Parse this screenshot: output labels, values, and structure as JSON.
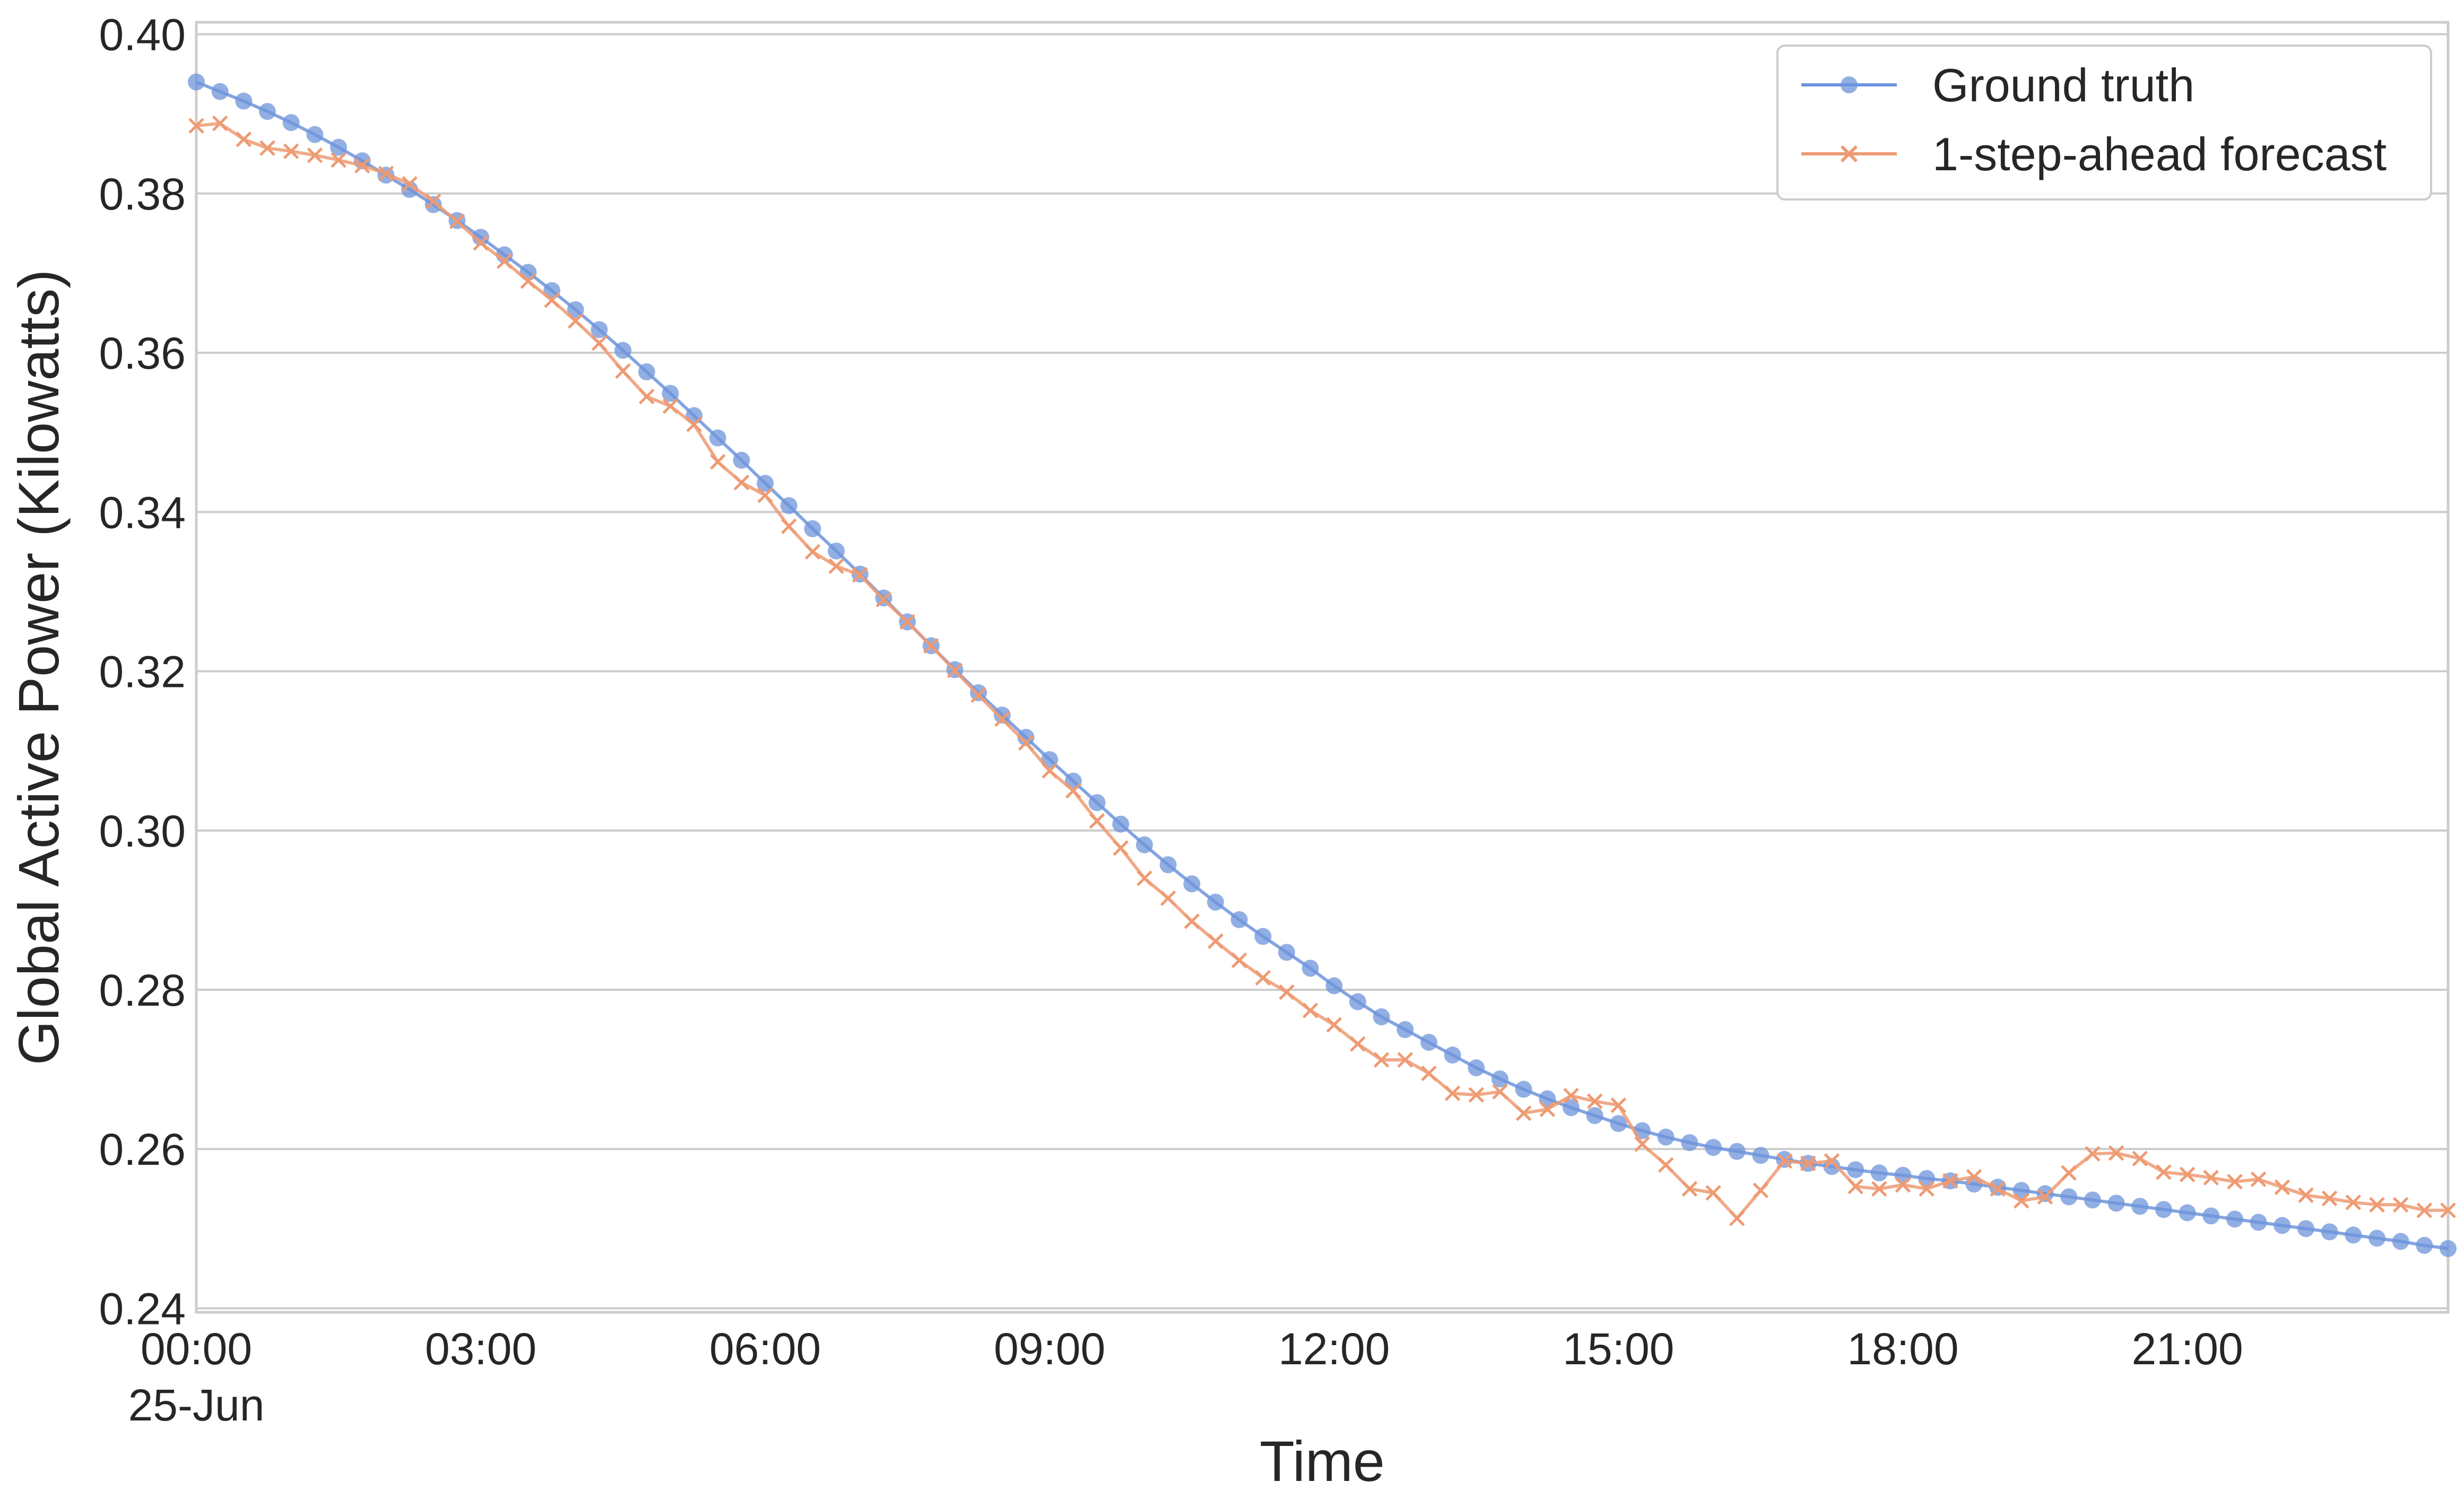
{
  "chart_data": {
    "type": "line",
    "title": "",
    "xlabel": "Time",
    "ylabel": "Global Active Power (Kilowatts)",
    "ylim": [
      0.2395,
      0.4015
    ],
    "yticks": [
      "0.24",
      "0.26",
      "0.28",
      "0.30",
      "0.32",
      "0.34",
      "0.36",
      "0.38",
      "0.40"
    ],
    "xlim": [
      "2010-06-25 00:00",
      "2010-06-25 23:45"
    ],
    "xticks": [
      {
        "label": "00:00",
        "sublabel": "25-Jun"
      },
      {
        "label": "03:00",
        "sublabel": ""
      },
      {
        "label": "06:00",
        "sublabel": ""
      },
      {
        "label": "09:00",
        "sublabel": ""
      },
      {
        "label": "12:00",
        "sublabel": ""
      },
      {
        "label": "15:00",
        "sublabel": ""
      },
      {
        "label": "18:00",
        "sublabel": ""
      },
      {
        "label": "21:00",
        "sublabel": ""
      }
    ],
    "grid": "horizontal",
    "legend_position": "top-right",
    "series": [
      {
        "name": "Ground truth",
        "color": "#6d94db",
        "marker": "circle",
        "values": [
          0.394,
          0.3928,
          0.3916,
          0.3903,
          0.3889,
          0.3874,
          0.3858,
          0.3841,
          0.3823,
          0.3805,
          0.3786,
          0.3766,
          0.3745,
          0.3723,
          0.3701,
          0.3678,
          0.3654,
          0.3629,
          0.3603,
          0.3576,
          0.3549,
          0.3521,
          0.3493,
          0.3465,
          0.3436,
          0.3408,
          0.3379,
          0.3351,
          0.3322,
          0.3292,
          0.3262,
          0.3232,
          0.3202,
          0.3173,
          0.3145,
          0.3117,
          0.3089,
          0.3062,
          0.3035,
          0.3008,
          0.2982,
          0.2957,
          0.2933,
          0.291,
          0.2888,
          0.2867,
          0.2847,
          0.2827,
          0.2805,
          0.2785,
          0.2766,
          0.275,
          0.2734,
          0.2718,
          0.2702,
          0.2688,
          0.2675,
          0.2663,
          0.2652,
          0.2642,
          0.2632,
          0.2623,
          0.2615,
          0.2608,
          0.2602,
          0.2597,
          0.2592,
          0.2587,
          0.2582,
          0.2578,
          0.2574,
          0.257,
          0.2567,
          0.2563,
          0.256,
          0.2556,
          0.2552,
          0.2548,
          0.2544,
          0.254,
          0.2536,
          0.2532,
          0.2528,
          0.2524,
          0.252,
          0.2516,
          0.2512,
          0.2508,
          0.2504,
          0.25,
          0.2496,
          0.2492,
          0.2488,
          0.2484,
          0.2479,
          0.2475
        ]
      },
      {
        "name": "1-step-ahead forecast",
        "color": "#ee9a72",
        "marker": "x",
        "values": [
          0.3885,
          0.3888,
          0.3868,
          0.3857,
          0.3853,
          0.3848,
          0.3842,
          0.3835,
          0.3825,
          0.3812,
          0.379,
          0.3765,
          0.3738,
          0.3715,
          0.369,
          0.3666,
          0.364,
          0.3612,
          0.3577,
          0.3545,
          0.3533,
          0.351,
          0.3463,
          0.3437,
          0.3421,
          0.3382,
          0.335,
          0.3332,
          0.3321,
          0.329,
          0.3262,
          0.3232,
          0.3201,
          0.317,
          0.314,
          0.311,
          0.3075,
          0.305,
          0.3012,
          0.2978,
          0.294,
          0.2915,
          0.2886,
          0.2861,
          0.2837,
          0.2815,
          0.2797,
          0.2774,
          0.2756,
          0.2732,
          0.2712,
          0.2712,
          0.2695,
          0.267,
          0.2668,
          0.2672,
          0.2645,
          0.265,
          0.2667,
          0.266,
          0.2655,
          0.2606,
          0.258,
          0.255,
          0.2545,
          0.2513,
          0.2548,
          0.2585,
          0.2582,
          0.2585,
          0.2553,
          0.255,
          0.2555,
          0.255,
          0.256,
          0.2565,
          0.255,
          0.2535,
          0.254,
          0.257,
          0.2594,
          0.2595,
          0.2588,
          0.2571,
          0.2568,
          0.2564,
          0.2559,
          0.2562,
          0.2552,
          0.2542,
          0.2538,
          0.2533,
          0.253,
          0.253,
          0.2523,
          0.2523
        ]
      }
    ]
  }
}
